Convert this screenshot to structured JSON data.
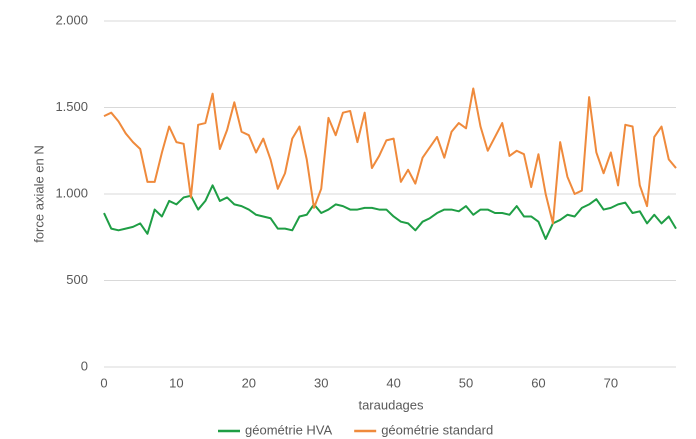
{
  "chart_data": {
    "type": "line",
    "ylabel": "force axiale en N",
    "xlabel": "taraudages",
    "x": [
      0,
      1,
      2,
      3,
      4,
      5,
      6,
      7,
      8,
      9,
      10,
      11,
      12,
      13,
      14,
      15,
      16,
      17,
      18,
      19,
      20,
      21,
      22,
      23,
      24,
      25,
      26,
      27,
      28,
      29,
      30,
      31,
      32,
      33,
      34,
      35,
      36,
      37,
      38,
      39,
      40,
      41,
      42,
      43,
      44,
      45,
      46,
      47,
      48,
      49,
      50,
      51,
      52,
      53,
      54,
      55,
      56,
      57,
      58,
      59,
      60,
      61,
      62,
      63,
      64,
      65,
      66,
      67,
      68,
      69,
      70,
      71,
      72,
      73,
      74,
      75,
      76,
      77,
      78,
      79
    ],
    "xlim": [
      0,
      79
    ],
    "xticks": [
      0,
      10,
      20,
      30,
      40,
      50,
      60,
      70
    ],
    "ylim": [
      0,
      2000
    ],
    "yticks": [
      0,
      500,
      {
        "value": 1000,
        "label": "1.000"
      },
      {
        "value": 1500,
        "label": "1.500"
      },
      {
        "value": 2000,
        "label": "2.000"
      }
    ],
    "grid": true,
    "legend": "bottom",
    "series": [
      {
        "name": "géométrie HVA",
        "color": "#1f9e45",
        "values": [
          890,
          800,
          790,
          800,
          810,
          830,
          770,
          910,
          870,
          960,
          940,
          980,
          990,
          910,
          960,
          1050,
          960,
          980,
          940,
          930,
          910,
          880,
          870,
          860,
          800,
          800,
          790,
          870,
          880,
          940,
          890,
          910,
          940,
          930,
          910,
          910,
          920,
          920,
          910,
          910,
          870,
          840,
          830,
          790,
          840,
          860,
          890,
          910,
          910,
          900,
          930,
          880,
          910,
          910,
          890,
          890,
          880,
          930,
          870,
          870,
          840,
          740,
          830,
          850,
          880,
          870,
          920,
          940,
          970,
          910,
          920,
          940,
          950,
          890,
          900,
          830,
          880,
          830,
          870,
          800
        ]
      },
      {
        "name": "géométrie standard",
        "color": "#ef8a3c",
        "values": [
          1450,
          1470,
          1420,
          1350,
          1300,
          1260,
          1070,
          1070,
          1240,
          1390,
          1300,
          1290,
          980,
          1400,
          1410,
          1580,
          1260,
          1370,
          1530,
          1360,
          1340,
          1240,
          1320,
          1200,
          1030,
          1120,
          1320,
          1390,
          1200,
          920,
          1030,
          1440,
          1340,
          1470,
          1480,
          1300,
          1470,
          1150,
          1220,
          1310,
          1320,
          1070,
          1140,
          1060,
          1210,
          1270,
          1330,
          1210,
          1360,
          1410,
          1380,
          1610,
          1390,
          1250,
          1330,
          1410,
          1220,
          1250,
          1230,
          1040,
          1230,
          1000,
          830,
          1300,
          1100,
          1000,
          1020,
          1560,
          1240,
          1120,
          1240,
          1050,
          1400,
          1390,
          1050,
          930,
          1330,
          1390,
          1200,
          1150
        ]
      }
    ]
  }
}
